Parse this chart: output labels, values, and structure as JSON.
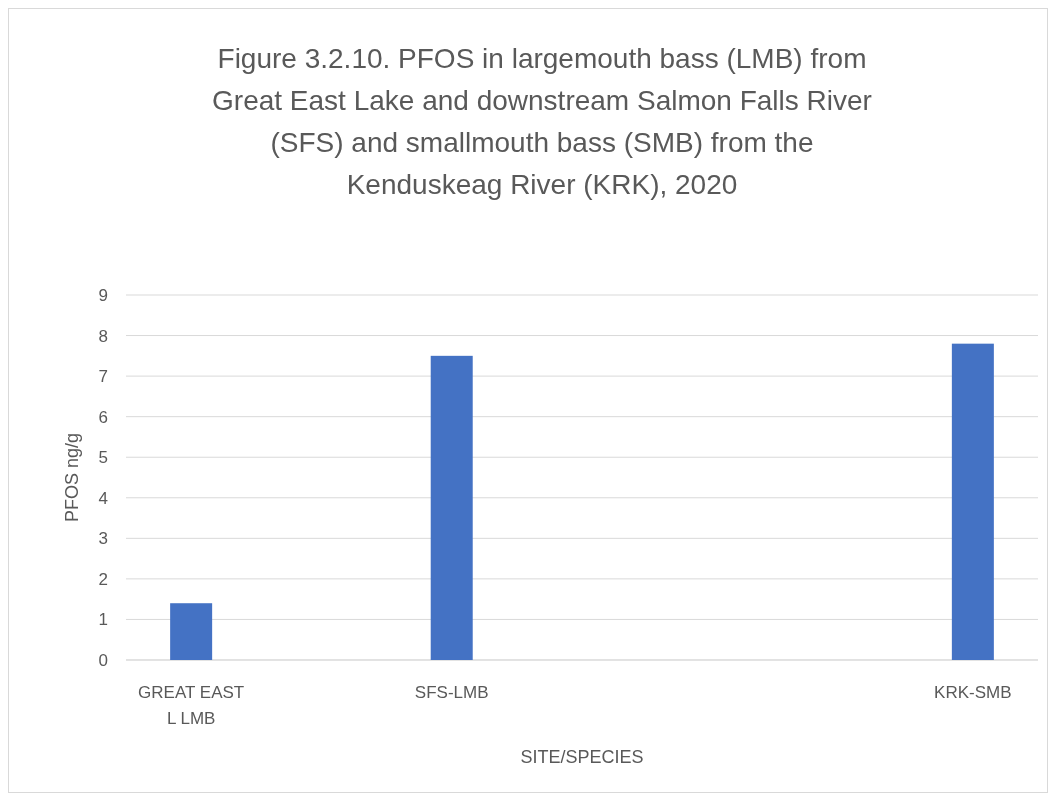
{
  "chart_data": {
    "type": "bar",
    "title": "Figure 3.2.10. PFOS in largemouth bass (LMB) from Great East Lake and downstream Salmon Falls River (SFS) and smallmouth bass (SMB) from the Kenduskeag River (KRK), 2020",
    "xlabel": "SITE/SPECIES",
    "ylabel": "PFOS ng/g",
    "categories": [
      "GREAT EAST L LMB",
      "SFS-LMB",
      null,
      "KRK-SMB"
    ],
    "values": [
      1.4,
      7.5,
      null,
      7.8
    ],
    "color": "#4472c4",
    "ylim": [
      0,
      9
    ],
    "yticks": [
      0,
      1,
      2,
      3,
      4,
      5,
      6,
      7,
      8,
      9
    ],
    "grid": "y"
  }
}
